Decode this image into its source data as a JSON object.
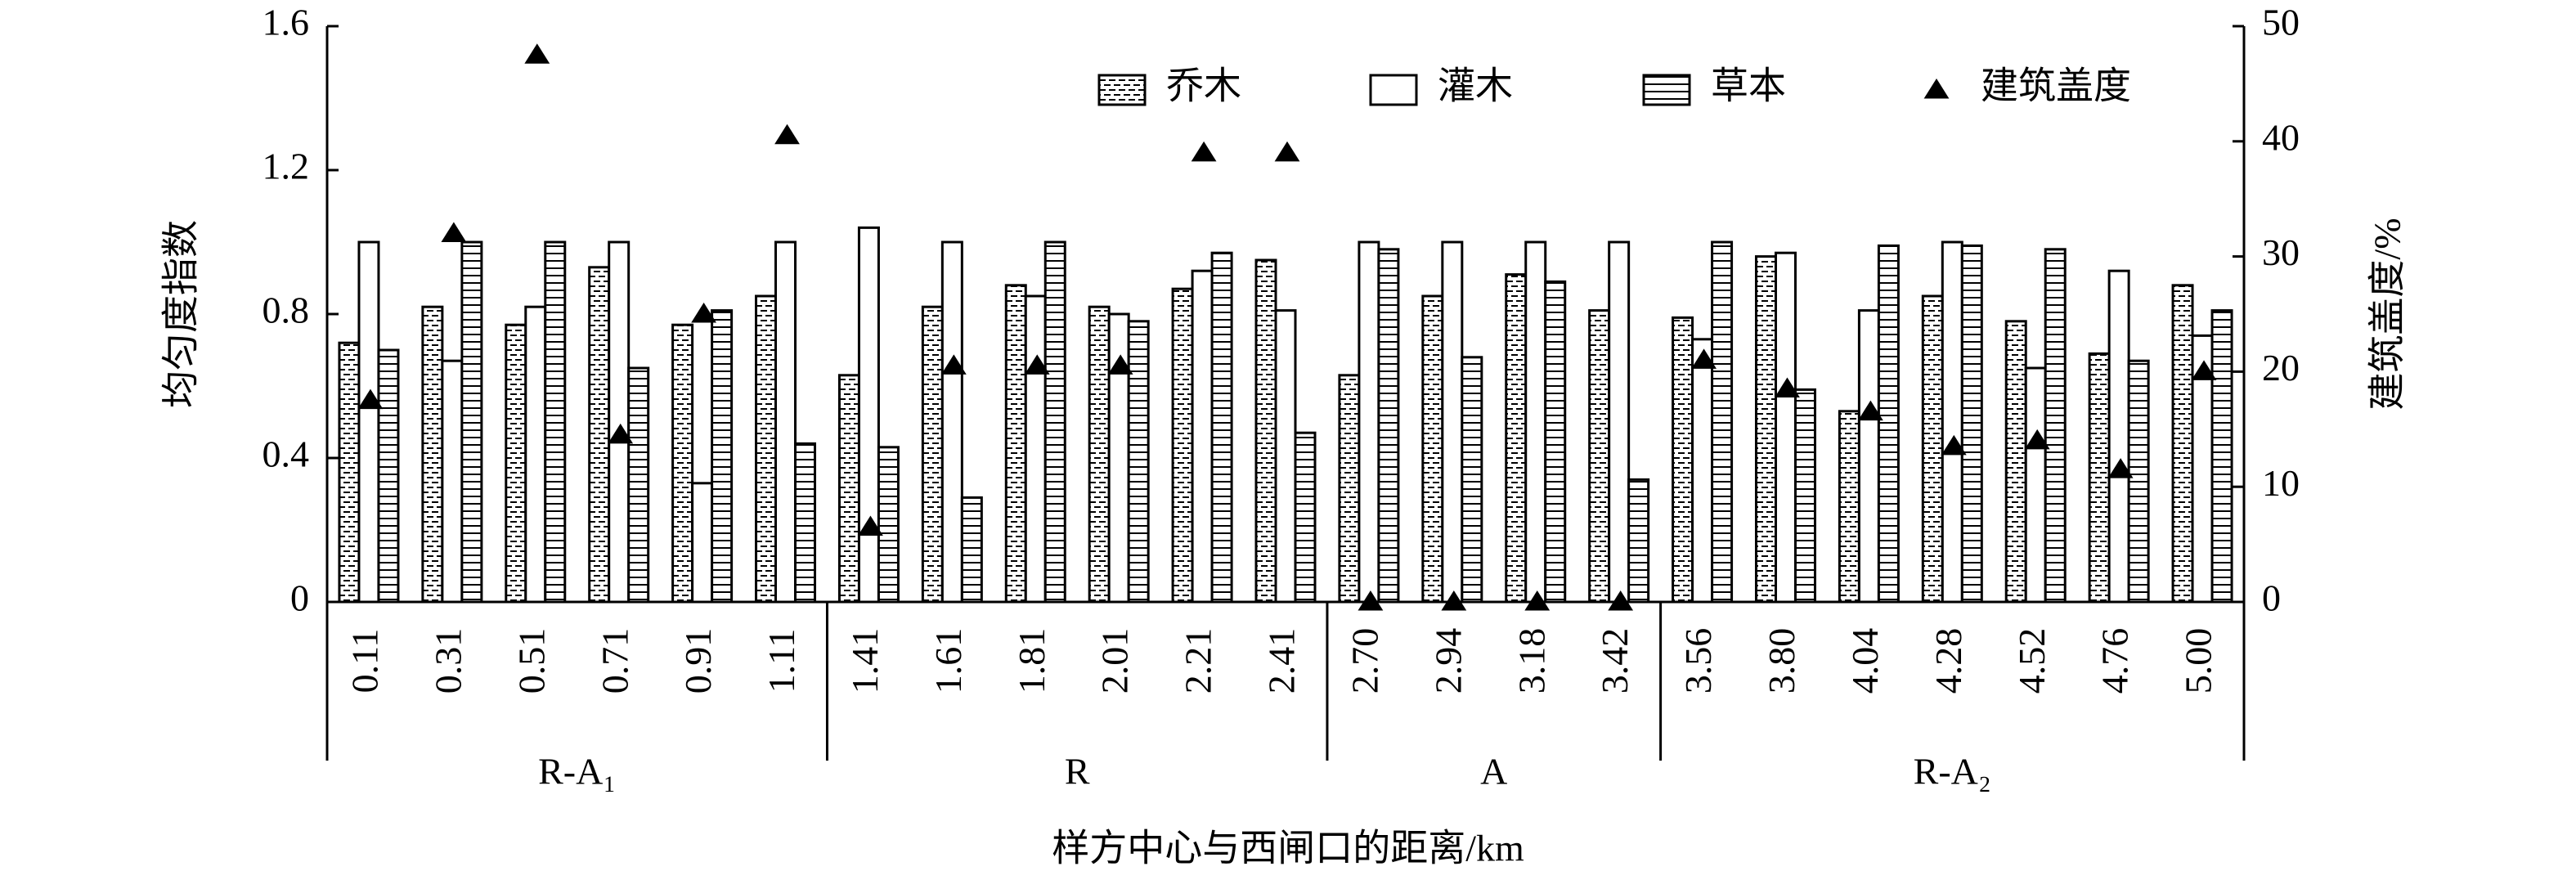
{
  "chart_data": {
    "type": "bar",
    "x_label": "样方中心与西闸口的距离/km",
    "y_label": "均匀度指数",
    "y2_label": "建筑盖度/%",
    "groups": [
      {
        "name": "R-A₁",
        "categories": [
          "0.11",
          "0.31",
          "0.51",
          "0.71",
          "0.91",
          "1.11"
        ]
      },
      {
        "name": "R",
        "categories": [
          "1.41",
          "1.61",
          "1.81",
          "2.01",
          "2.21",
          "2.41"
        ]
      },
      {
        "name": "A",
        "categories": [
          "2.70",
          "2.94",
          "3.18",
          "3.42"
        ]
      },
      {
        "name": "R-A₂",
        "categories": [
          "3.56",
          "3.80",
          "4.04",
          "4.28",
          "4.52",
          "4.76",
          "5.00"
        ]
      }
    ],
    "series": [
      {
        "name": "乔木",
        "color": "#000000",
        "pattern": "brick",
        "values": [
          0.72,
          0.82,
          0.77,
          0.93,
          0.77,
          0.85,
          0.63,
          0.82,
          0.88,
          0.82,
          0.87,
          0.95,
          0.63,
          0.85,
          0.91,
          0.81,
          0.79,
          0.96,
          0.53,
          0.85,
          0.78,
          0.69,
          0.88
        ]
      },
      {
        "name": "灌木",
        "color": "#000000",
        "pattern": "none",
        "values": [
          1.0,
          0.67,
          0.82,
          1.0,
          0.33,
          1.0,
          1.04,
          1.0,
          0.85,
          0.8,
          0.92,
          0.81,
          1.0,
          1.0,
          1.0,
          1.0,
          0.73,
          0.97,
          0.81,
          1.0,
          0.65,
          0.92,
          0.74
        ]
      },
      {
        "name": "草本",
        "color": "#000000",
        "pattern": "hlines",
        "values": [
          0.7,
          1.0,
          1.0,
          0.65,
          0.81,
          0.44,
          0.43,
          0.29,
          1.0,
          0.78,
          0.97,
          0.47,
          0.98,
          0.68,
          0.89,
          0.34,
          1.0,
          0.59,
          0.99,
          0.99,
          0.98,
          0.67,
          0.81
        ]
      },
      {
        "name": "建筑盖度",
        "color": "#000000",
        "type": "triangle",
        "axis": "y2",
        "values": [
          17.5,
          32,
          47.5,
          14.5,
          25,
          40.5,
          6.5,
          20.5,
          20.5,
          20.5,
          39,
          39,
          0,
          0,
          0,
          0,
          21,
          18.5,
          16.5,
          13.5,
          14,
          11.5,
          20
        ]
      }
    ],
    "ylim": [
      0,
      1.6
    ],
    "yticks": [
      0,
      0.4,
      0.8,
      1.2,
      1.6
    ],
    "y2lim": [
      0,
      50
    ],
    "y2ticks": [
      0,
      10,
      20,
      30,
      40,
      50
    ],
    "legend": "top-right"
  }
}
